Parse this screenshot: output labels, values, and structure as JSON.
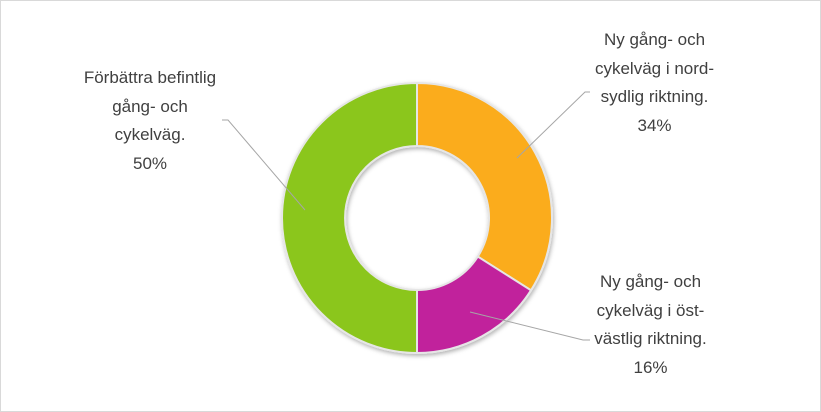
{
  "chart_data": {
    "type": "donut",
    "categories": [
      "Ny gång- och cykelväg i nord-sydlig riktning.",
      "Ny gång- och cykelväg i öst-västlig riktning.",
      "Förbättra befintlig gång- och cykelväg."
    ],
    "values": [
      34,
      16,
      50
    ],
    "value_labels": [
      "34%",
      "16%",
      "50%"
    ],
    "colors": [
      "#fbac1e",
      "#c1239c",
      "#8bc61a"
    ]
  }
}
